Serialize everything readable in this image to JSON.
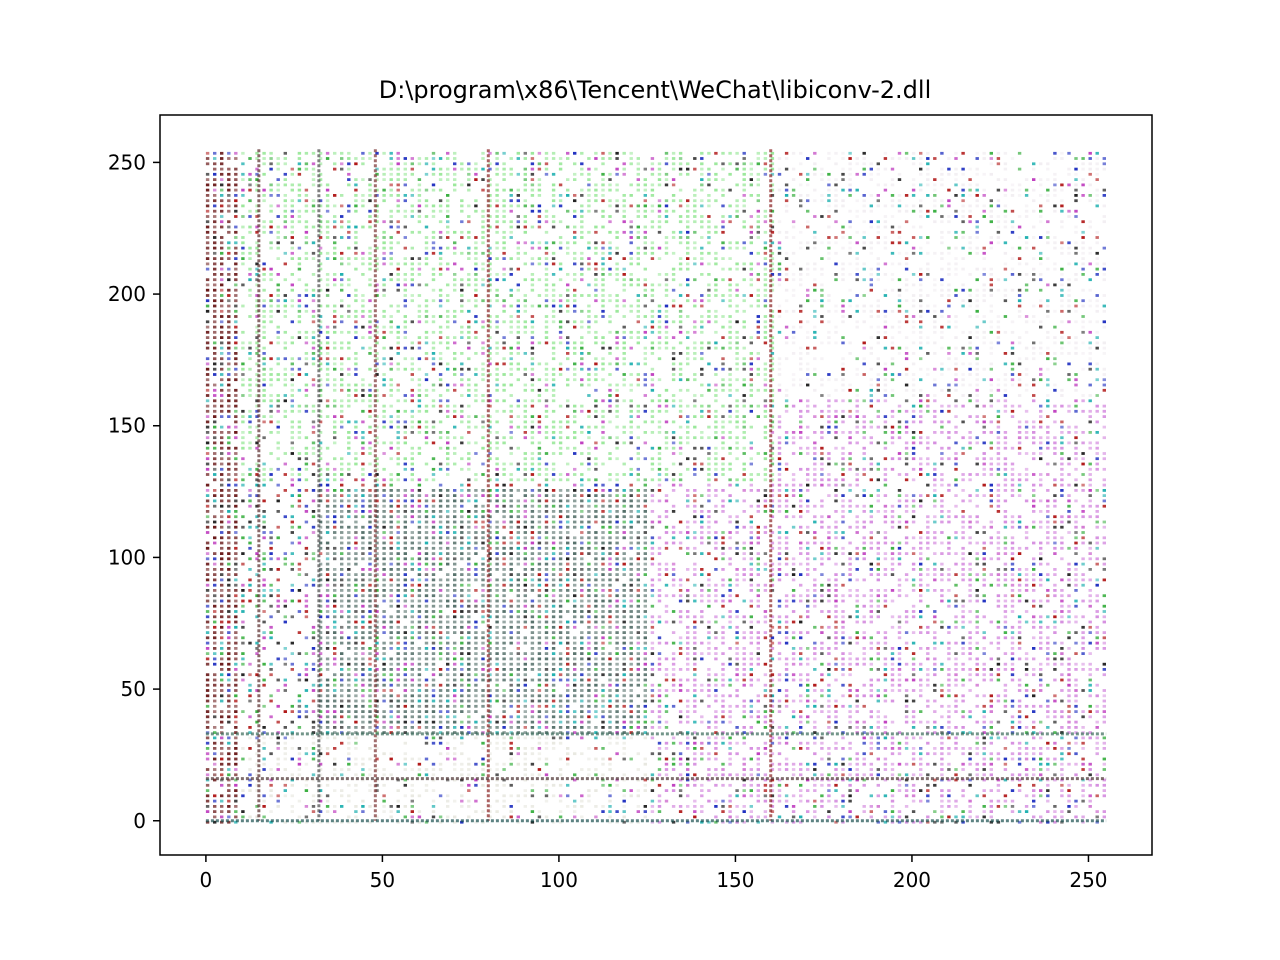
{
  "chart_data": {
    "type": "scatter",
    "title": "D:\\program\\x86\\Tencent\\WeChat\\libiconv-2.dll",
    "xlabel": "",
    "ylabel": "",
    "xlim": [
      -13,
      268
    ],
    "ylim": [
      -13,
      268
    ],
    "x_ticks": [
      0,
      50,
      100,
      150,
      200,
      250
    ],
    "y_ticks": [
      0,
      50,
      100,
      150,
      200,
      250
    ],
    "x_tick_labels": [
      "0",
      "50",
      "100",
      "150",
      "200",
      "250"
    ],
    "y_tick_labels": [
      "0",
      "50",
      "100",
      "150",
      "200",
      "250"
    ],
    "grid": false,
    "legend": "none",
    "point_grid": {
      "x_min": 0,
      "x_max": 255,
      "y_min": 0,
      "y_max": 255
    },
    "regions": [
      {
        "name": "upper-left",
        "x_range": [
          0,
          160
        ],
        "y_range": [
          130,
          255
        ],
        "tint": "#9be89b",
        "weight": 0.55
      },
      {
        "name": "upper-right",
        "x_range": [
          160,
          255
        ],
        "y_range": [
          150,
          255
        ],
        "tint": "#f2eef2",
        "weight": 0.45
      },
      {
        "name": "lower-right",
        "x_range": [
          125,
          255
        ],
        "y_range": [
          0,
          160
        ],
        "tint": "#d68fe0",
        "weight": 0.55
      },
      {
        "name": "dense-block",
        "x_range": [
          32,
          125
        ],
        "y_range": [
          33,
          127
        ],
        "tint": "#55706a",
        "weight": 0.85
      },
      {
        "name": "low-band",
        "x_range": [
          0,
          255
        ],
        "y_range": [
          0,
          33
        ],
        "tint": "#e8e8e0",
        "weight": 0.45
      },
      {
        "name": "left-edge",
        "x_range": [
          0,
          8
        ],
        "y_range": [
          0,
          255
        ],
        "tint": "#6a1a1a",
        "weight": 0.85
      }
    ],
    "streaks": [
      {
        "axis": "x",
        "value": 80,
        "color": "#8a2020"
      },
      {
        "axis": "x",
        "value": 160,
        "color": "#8a2020"
      },
      {
        "axis": "x",
        "value": 48,
        "color": "#7a3030"
      },
      {
        "axis": "x",
        "value": 32,
        "color": "#4a4a4a"
      },
      {
        "axis": "x",
        "value": 15,
        "color": "#5a2a2a"
      },
      {
        "axis": "y",
        "value": 0,
        "color": "#1a5050"
      },
      {
        "axis": "y",
        "value": 33,
        "color": "#3a6a5a"
      },
      {
        "axis": "y",
        "value": 16,
        "color": "#4a3030"
      }
    ],
    "colors": {
      "green": "#3cb043",
      "magenta": "#c040c0",
      "blue": "#2030c0",
      "red": "#b01818",
      "dark": "#202020",
      "cyan": "#20b0b0",
      "frame": "#000000",
      "background": "#ffffff"
    }
  }
}
